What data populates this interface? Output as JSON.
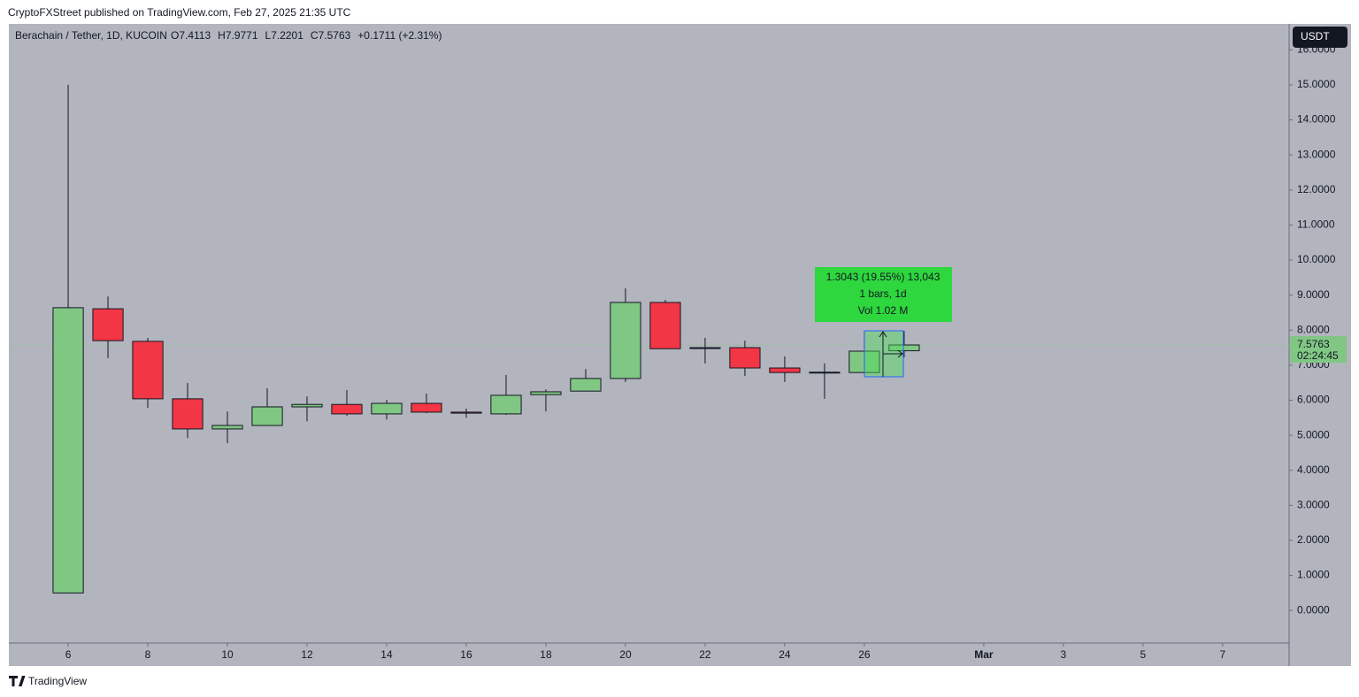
{
  "header": {
    "publisher": "CryptoFXStreet published on TradingView.com, Feb 27, 2025 21:35 UTC"
  },
  "footer": {
    "brand": "TradingView"
  },
  "chart_data": {
    "type": "candlestick",
    "title": "Berachain / Tether, 1D, KUCOIN",
    "ohlc_fields": [
      "O7.4113",
      "H7.9771",
      "L7.2201",
      "C7.5763",
      "+0.1711 (+2.31%)"
    ],
    "currency": "USDT",
    "x": [
      6,
      7,
      8,
      9,
      10,
      11,
      12,
      13,
      14,
      15,
      16,
      17,
      18,
      19,
      20,
      21,
      22,
      23,
      24,
      25,
      26,
      27
    ],
    "open": [
      0.5,
      8.61,
      7.68,
      6.04,
      5.18,
      5.28,
      5.81,
      5.88,
      5.61,
      5.91,
      5.66,
      5.61,
      6.16,
      6.26,
      6.62,
      8.79,
      7.5,
      7.5,
      6.92,
      6.79,
      6.79,
      7.4113
    ],
    "high": [
      15.0,
      8.96,
      7.78,
      6.49,
      5.68,
      6.34,
      6.11,
      6.29,
      6.01,
      6.19,
      5.76,
      6.72,
      6.31,
      6.89,
      9.19,
      8.86,
      7.78,
      7.7,
      7.25,
      7.05,
      7.98,
      7.9771
    ],
    "low": [
      0.5,
      7.2,
      5.78,
      4.92,
      4.77,
      5.28,
      5.4,
      5.56,
      5.45,
      5.63,
      5.5,
      5.58,
      5.68,
      6.26,
      6.52,
      7.47,
      7.05,
      6.69,
      6.52,
      6.04,
      6.79,
      7.2201
    ],
    "close": [
      8.64,
      7.7,
      6.04,
      5.18,
      5.28,
      5.81,
      5.88,
      5.61,
      5.91,
      5.66,
      5.63,
      6.14,
      6.24,
      6.62,
      8.79,
      7.47,
      7.48,
      6.92,
      6.79,
      6.8,
      7.4,
      7.5763
    ],
    "up_color": "#81c784",
    "down_color": "#f23645",
    "xlim": [
      4.51,
      36.67
    ],
    "xticks": [
      6,
      8,
      10,
      12,
      14,
      16,
      18,
      20,
      22,
      24,
      26,
      {
        "value": 29,
        "label": "Mar"
      },
      {
        "value": 31,
        "label": "3"
      },
      {
        "value": 33,
        "label": "5"
      },
      {
        "value": 35,
        "label": "7"
      }
    ],
    "ylim": [
      -0.93,
      16.74
    ],
    "yticks": [
      {
        "value": 0,
        "label": "0.0000"
      },
      {
        "value": 1,
        "label": "1.0000"
      },
      {
        "value": 2,
        "label": "2.0000"
      },
      {
        "value": 3,
        "label": "3.0000"
      },
      {
        "value": 4,
        "label": "4.0000"
      },
      {
        "value": 5,
        "label": "5.0000"
      },
      {
        "value": 6,
        "label": "6.0000"
      },
      {
        "value": 7,
        "label": "7.0000"
      },
      {
        "value": 8,
        "label": "8.0000"
      },
      {
        "value": 9,
        "label": "9.0000"
      },
      {
        "value": 10,
        "label": "10.0000"
      },
      {
        "value": 11,
        "label": "11.0000"
      },
      {
        "value": 12,
        "label": "12.0000"
      },
      {
        "value": 13,
        "label": "13.0000"
      },
      {
        "value": 14,
        "label": "14.0000"
      },
      {
        "value": 15,
        "label": "15.0000"
      },
      {
        "value": 16,
        "label": "16.0000"
      }
    ],
    "last_price": {
      "value": 7.5763,
      "label": "7.5763"
    },
    "countdown": "02:24:45",
    "measure": {
      "lines": [
        "1.3043 (19.55%) 13,043",
        "1 bars, 1d",
        "Vol 1.02 M"
      ]
    }
  }
}
